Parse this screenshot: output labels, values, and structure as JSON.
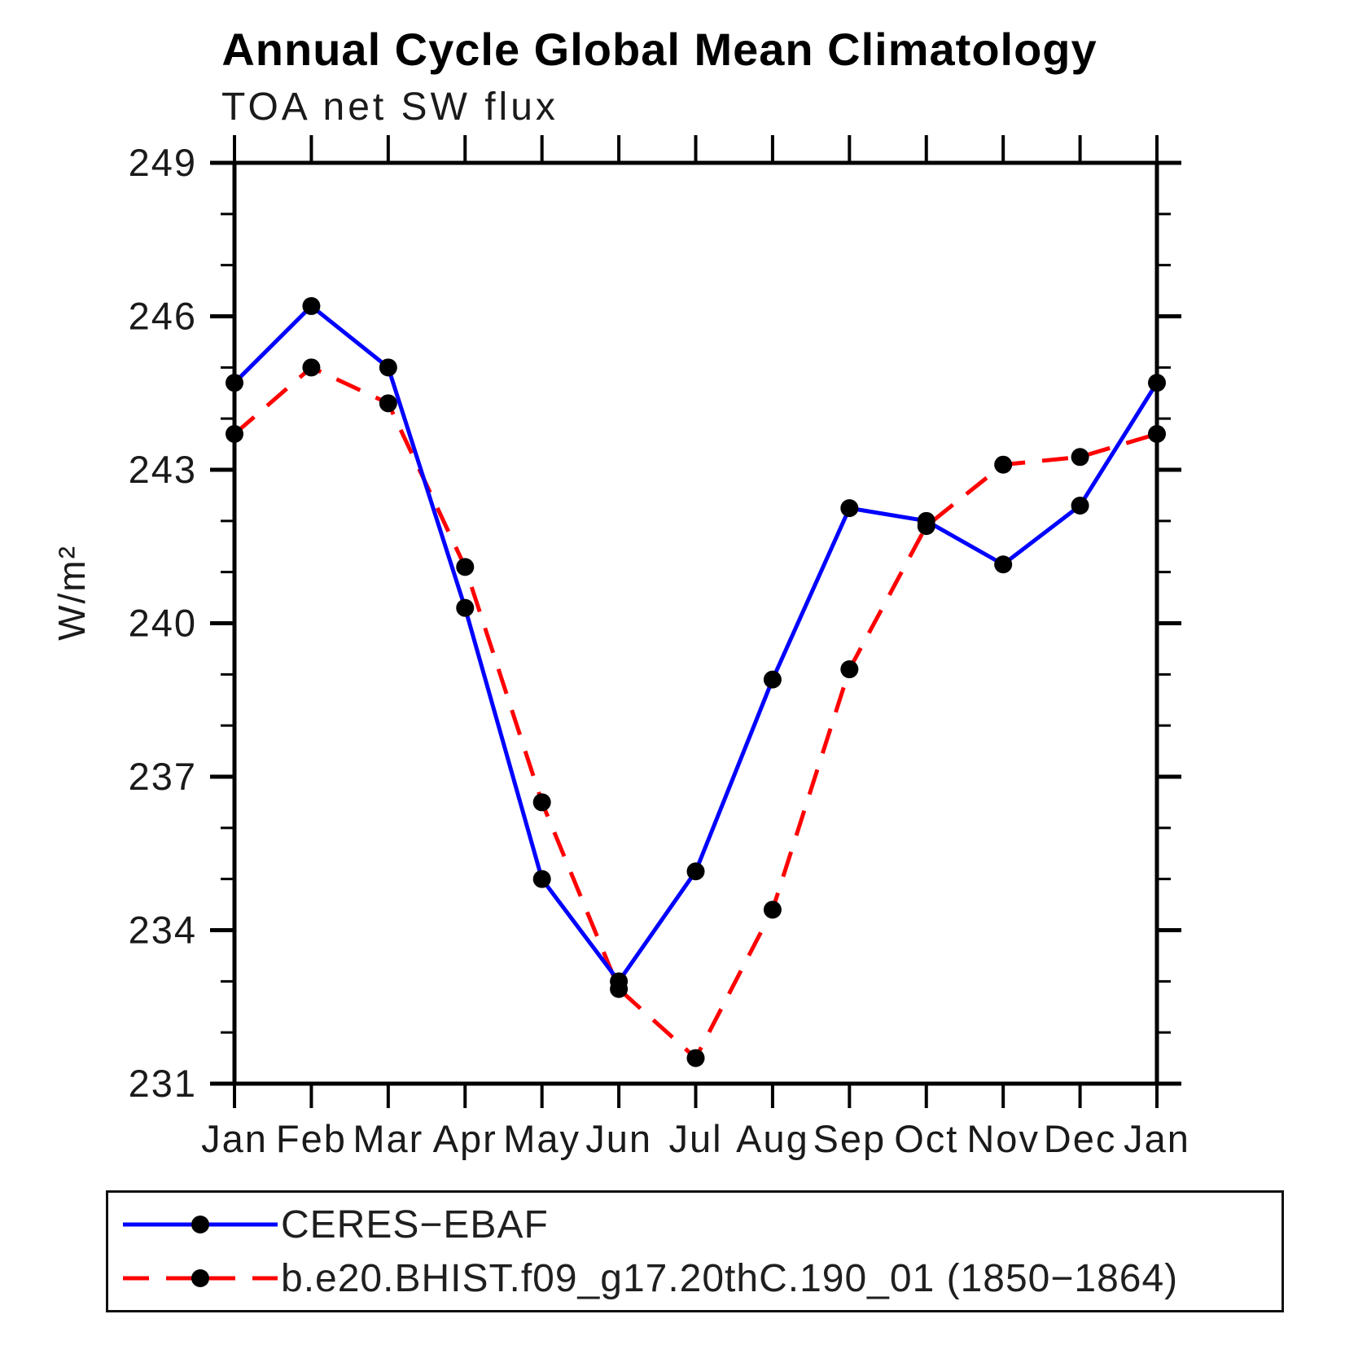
{
  "chart": {
    "title": "Annual Cycle Global Mean Climatology",
    "subtitle": "TOA net SW flux",
    "ylabel": "W/m²"
  },
  "legend": {
    "items": [
      {
        "label": "CERES−EBAF",
        "style": "solid",
        "color": "#0000ff",
        "marker_color": "#000000"
      },
      {
        "label": "b.e20.BHIST.f09_g17.20thC.190_01 (1850−1864)",
        "style": "dashed",
        "color": "#ff0000",
        "marker_color": "#000000"
      }
    ]
  },
  "chart_data": {
    "type": "line",
    "title": "Annual Cycle Global Mean Climatology",
    "subtitle": "TOA net SW flux",
    "xlabel": "",
    "ylabel": "W/m²",
    "x": [
      "Jan",
      "Feb",
      "Mar",
      "Apr",
      "May",
      "Jun",
      "Jul",
      "Aug",
      "Sep",
      "Oct",
      "Nov",
      "Dec",
      "Jan"
    ],
    "ylim": [
      231,
      249
    ],
    "ytick_major": 3,
    "ytick_minor": 1,
    "grid": false,
    "legend_position": "bottom",
    "axis_color": "#000000",
    "series": [
      {
        "name": "CERES−EBAF",
        "color": "#0000ff",
        "style": "solid",
        "marker": "circle",
        "marker_color": "#000000",
        "values": [
          244.7,
          246.2,
          245.0,
          240.3,
          235.0,
          233.0,
          235.15,
          238.9,
          242.25,
          242.0,
          241.15,
          242.3,
          244.7
        ]
      },
      {
        "name": "b.e20.BHIST.f09_g17.20thC.190_01 (1850−1864)",
        "color": "#ff0000",
        "style": "dashed",
        "marker": "circle",
        "marker_color": "#000000",
        "values": [
          243.7,
          245.0,
          244.3,
          241.1,
          236.5,
          232.85,
          231.5,
          234.4,
          239.1,
          241.9,
          243.1,
          243.25,
          243.7
        ]
      }
    ]
  }
}
